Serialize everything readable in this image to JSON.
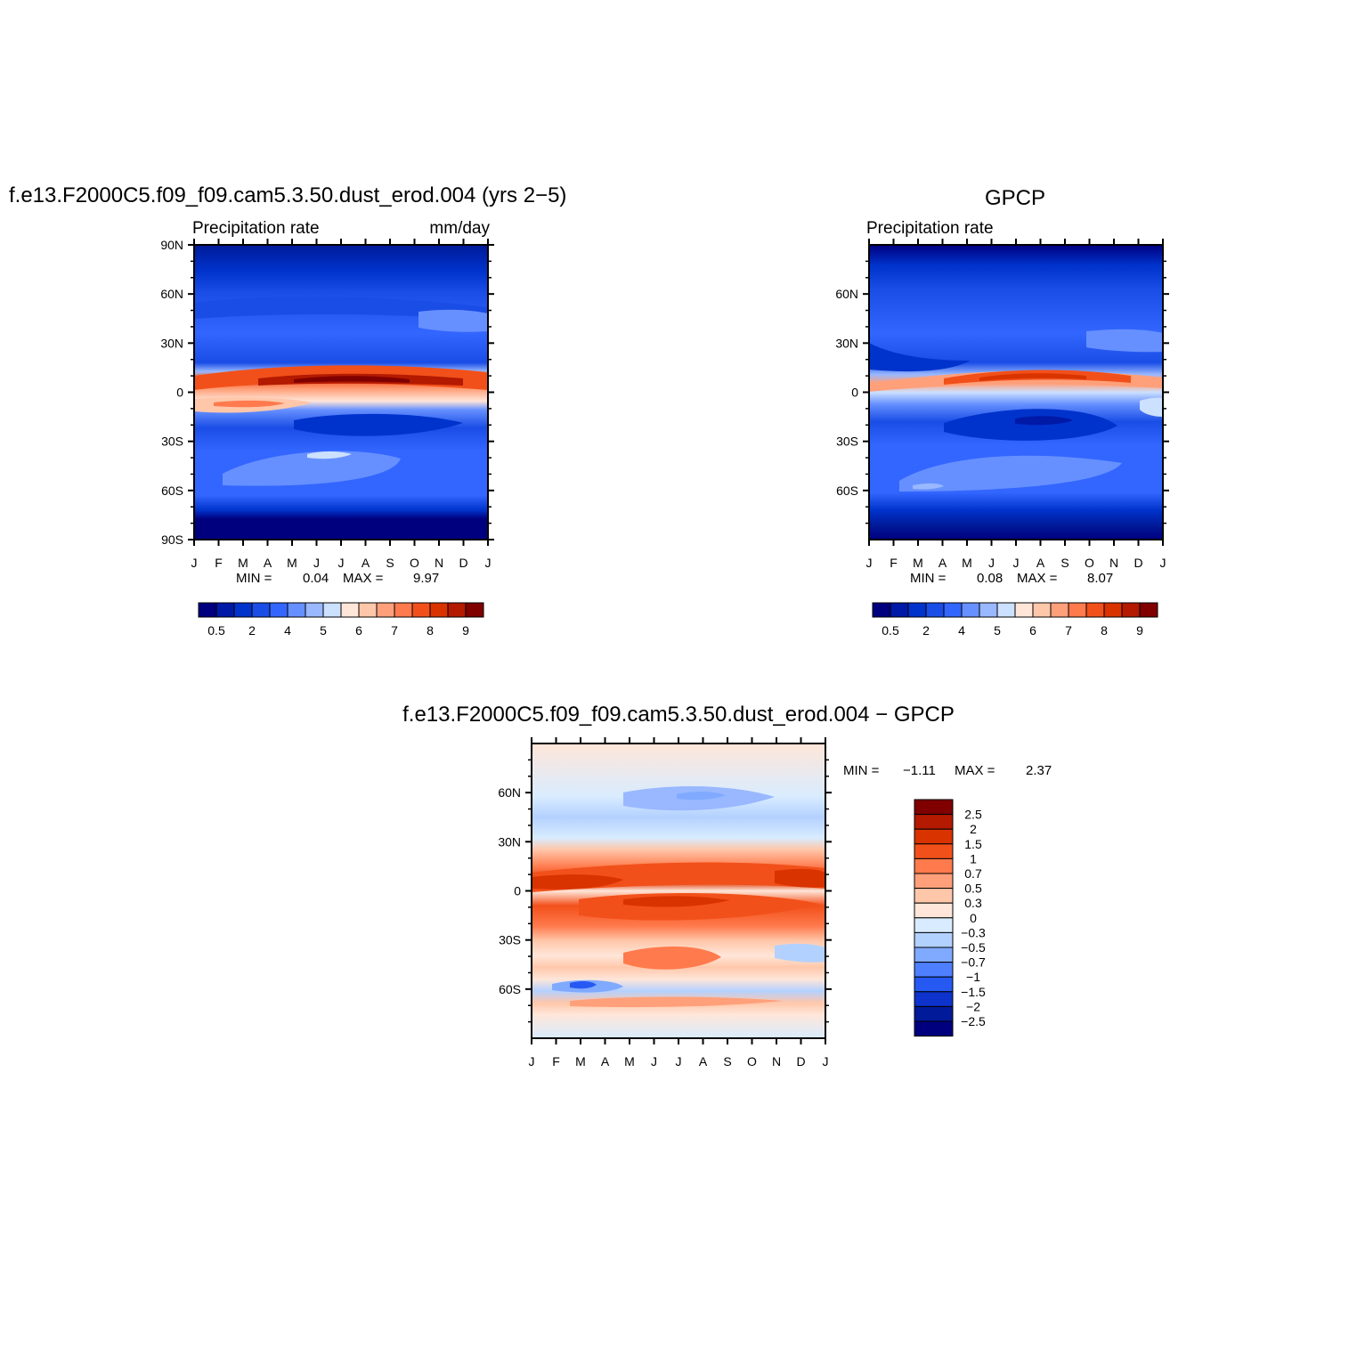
{
  "chart_data": [
    {
      "type": "heatmap",
      "title": "f.e13.F2000C5.f09_f09.cam5.3.50.dust_erod.004 (yrs 2−5)",
      "subtitle_left": "Precipitation rate",
      "subtitle_right": "mm/day",
      "months": [
        "J",
        "F",
        "M",
        "A",
        "M",
        "J",
        "J",
        "A",
        "S",
        "O",
        "N",
        "D",
        "J"
      ],
      "lat_labels": [
        "90N",
        "60N",
        "30N",
        "0",
        "30S",
        "60S",
        "90S"
      ],
      "lat_range": [
        -90,
        90
      ],
      "min_label": "MIN =",
      "min_value": "0.04",
      "max_label": "MAX =",
      "max_value": "9.97",
      "colorbar_labels": [
        "0.5",
        "2",
        "4",
        "5",
        "6",
        "7",
        "8",
        "9"
      ],
      "colorbar_orientation": "horizontal"
    },
    {
      "type": "heatmap",
      "title": "GPCP",
      "subtitle_left": "Precipitation rate",
      "months": [
        "J",
        "F",
        "M",
        "A",
        "M",
        "J",
        "J",
        "A",
        "S",
        "O",
        "N",
        "D",
        "J"
      ],
      "lat_labels": [
        "60N",
        "30N",
        "0",
        "30S",
        "60S"
      ],
      "lat_range": [
        -90,
        90
      ],
      "min_label": "MIN =",
      "min_value": "0.08",
      "max_label": "MAX =",
      "max_value": "8.07",
      "colorbar_labels": [
        "0.5",
        "2",
        "4",
        "5",
        "6",
        "7",
        "8",
        "9"
      ],
      "colorbar_orientation": "horizontal"
    },
    {
      "type": "heatmap",
      "title": "f.e13.F2000C5.f09_f09.cam5.3.50.dust_erod.004 − GPCP",
      "months": [
        "J",
        "F",
        "M",
        "A",
        "M",
        "J",
        "J",
        "A",
        "S",
        "O",
        "N",
        "D",
        "J"
      ],
      "lat_labels": [
        "60N",
        "30N",
        "0",
        "30S",
        "60S"
      ],
      "lat_range": [
        -90,
        90
      ],
      "min_label": "MIN =",
      "min_value": "−1.11",
      "max_label": "MAX =",
      "max_value": "2.37",
      "colorbar_labels": [
        "2.5",
        "2",
        "1.5",
        "1",
        "0.7",
        "0.5",
        "0.3",
        "0",
        "−0.3",
        "−0.5",
        "−0.7",
        "−1",
        "−1.5",
        "−2",
        "−2.5"
      ],
      "colorbar_orientation": "vertical"
    }
  ],
  "colors": {
    "abs_palette": [
      "#00007f",
      "#0019a6",
      "#0033cc",
      "#1a4de6",
      "#3366ff",
      "#6690ff",
      "#99b8ff",
      "#cce0ff",
      "#ffe6d9",
      "#ffc7aa",
      "#ffa07a",
      "#ff7a4d",
      "#f2501a",
      "#d93300",
      "#b31a00",
      "#800000"
    ],
    "diff_palette": [
      "#800000",
      "#b31a00",
      "#d93300",
      "#f2501a",
      "#ff7a4d",
      "#ffa07a",
      "#ffc7aa",
      "#ffe6d9",
      "#d9ecff",
      "#b3d1ff",
      "#80aaff",
      "#4d7fff",
      "#2659f2",
      "#0d33cc",
      "#001a99",
      "#00007f"
    ]
  }
}
